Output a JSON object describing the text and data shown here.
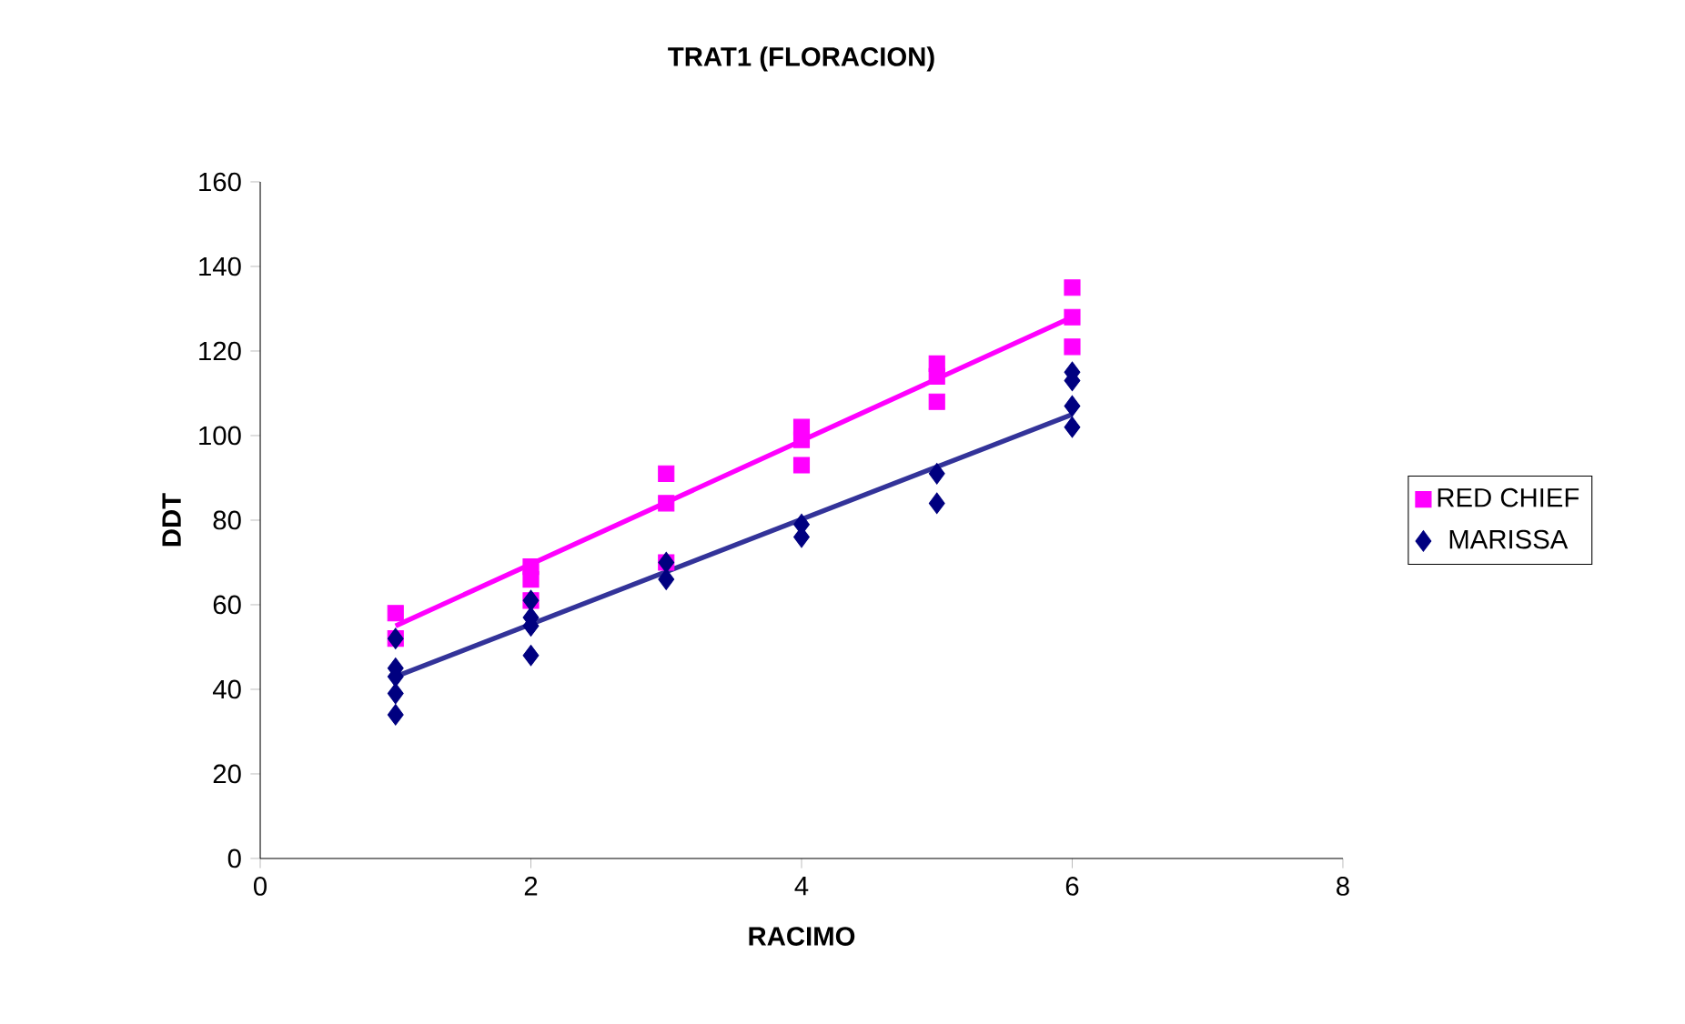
{
  "chart_data": {
    "type": "scatter",
    "title": "TRAT1 (FLORACION)",
    "xlabel": "RACIMO",
    "ylabel": "DDT",
    "xlim": [
      0,
      8
    ],
    "xticks": [
      0,
      2,
      4,
      6,
      8
    ],
    "ylim": [
      0,
      160
    ],
    "yticks": [
      0,
      20,
      40,
      60,
      80,
      100,
      120,
      140,
      160
    ],
    "grid": false,
    "legend": "right",
    "series": [
      {
        "name": "MARISSA",
        "color": "#000080",
        "marker": "diamond",
        "x": [
          1,
          1,
          1,
          1,
          1,
          2,
          2,
          2,
          2,
          3,
          3,
          4,
          4,
          5,
          5,
          6,
          6,
          6,
          6
        ],
        "values": [
          52,
          45,
          43,
          39,
          34,
          61,
          57,
          55,
          48,
          70,
          66,
          79,
          76,
          91,
          84,
          115,
          113,
          107,
          102
        ]
      },
      {
        "name": "RED CHIEF",
        "color": "#ff00ff",
        "marker": "square",
        "x": [
          1,
          1,
          2,
          2,
          2,
          3,
          3,
          3,
          4,
          4,
          4,
          5,
          5,
          5,
          6,
          6,
          6
        ],
        "values": [
          58,
          52,
          69,
          66,
          61,
          91,
          84,
          70,
          102,
          99,
          93,
          117,
          114,
          108,
          135,
          128,
          121
        ]
      },
      {
        "type": "line",
        "color": "#333399",
        "x": [
          1,
          6
        ],
        "values": [
          43,
          105
        ]
      },
      {
        "type": "line",
        "color": "#ff00ff",
        "x": [
          1,
          6
        ],
        "values": [
          55,
          128
        ]
      }
    ]
  }
}
